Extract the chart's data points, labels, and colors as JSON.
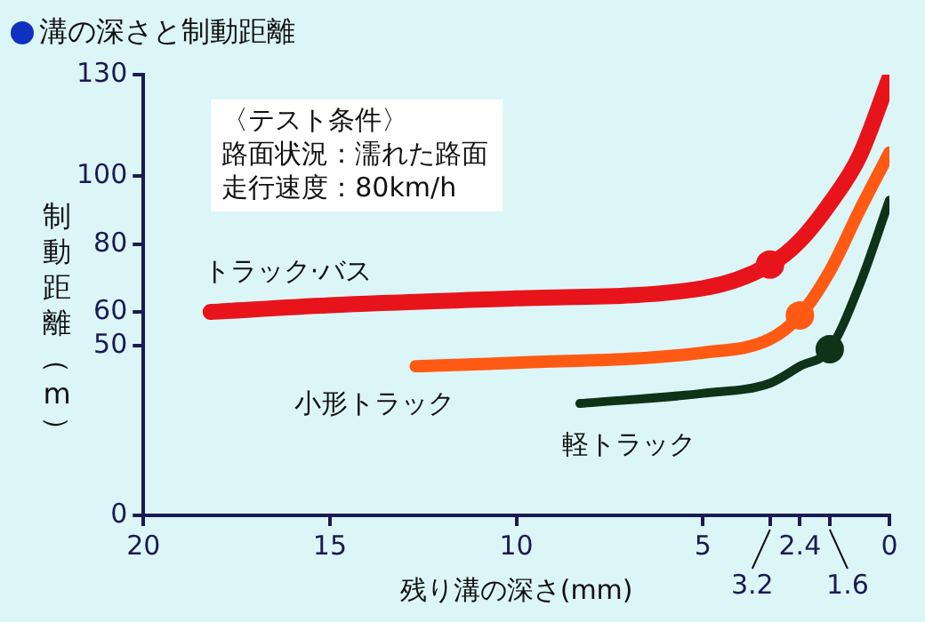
{
  "chart_data": {
    "type": "line",
    "title": "溝の深さと制動距離",
    "xlabel": "残り溝の深さ(mm)",
    "ylabel": "制動距離（m）",
    "annotations": [
      "〈テスト条件〉",
      "路面状況：濡れた路面",
      "走行速度：80km/h",
      "3.2",
      "1.6"
    ],
    "xlim": [
      20,
      0
    ],
    "xticks": [
      20,
      15,
      10,
      5,
      {
        "value": 3.2,
        "label": null
      },
      2.4,
      {
        "value": 1.6,
        "label": null
      },
      0
    ],
    "ylim": [
      0,
      130
    ],
    "yticks": [
      0,
      50,
      60,
      80,
      100,
      130
    ],
    "grid": false,
    "legend": false,
    "marker": "none",
    "series": [
      {
        "name": "トラック·バス",
        "color": "#e8141c",
        "x": [
          18.2,
          15,
          10,
          5,
          3.2,
          2.4,
          1.6,
          0.8,
          0
        ],
        "values": [
          60,
          62,
          64,
          67,
          74,
          81,
          92,
          106,
          129
        ]
      },
      {
        "name": "小形トラック",
        "color": "#ff5a14",
        "x": [
          12.7,
          10,
          5,
          3.2,
          2.4,
          1.6,
          0.8,
          0
        ],
        "values": [
          44,
          45,
          48,
          52,
          59,
          72,
          90,
          107
        ]
      },
      {
        "name": "軽トラック",
        "color": "#0f3318",
        "x": [
          8.3,
          5,
          3.2,
          2.4,
          1.6,
          0.8,
          0
        ],
        "values": [
          33,
          36,
          39,
          44,
          49,
          68,
          93
        ]
      },
      {
        "type": "scatter",
        "marker": "circle",
        "x": [
          3.2,
          2.4,
          1.6
        ],
        "values": [
          74,
          59,
          49
        ],
        "colors": [
          "#e8141c",
          "#ff5a14",
          "#0f3318"
        ]
      }
    ]
  }
}
